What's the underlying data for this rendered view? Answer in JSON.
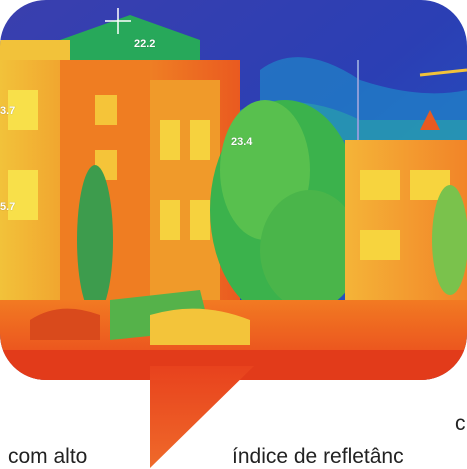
{
  "thermal_readings": {
    "reading_top": "22.2",
    "reading_center": "23.4",
    "reading_left_upper": "3.7",
    "reading_left_lower": "5.7"
  },
  "caption": {
    "left_fragment": "com alto",
    "right_fragment": "índice de refletânc",
    "floating_fragment": "c"
  },
  "colors": {
    "sky_blue": "#2b3fb4",
    "sky_violet": "#4a3aa8",
    "vegetation_green": "#3bb24c",
    "hot_red": "#e8421d",
    "warm_orange": "#f08a25",
    "warm_yellow": "#f4d437"
  }
}
